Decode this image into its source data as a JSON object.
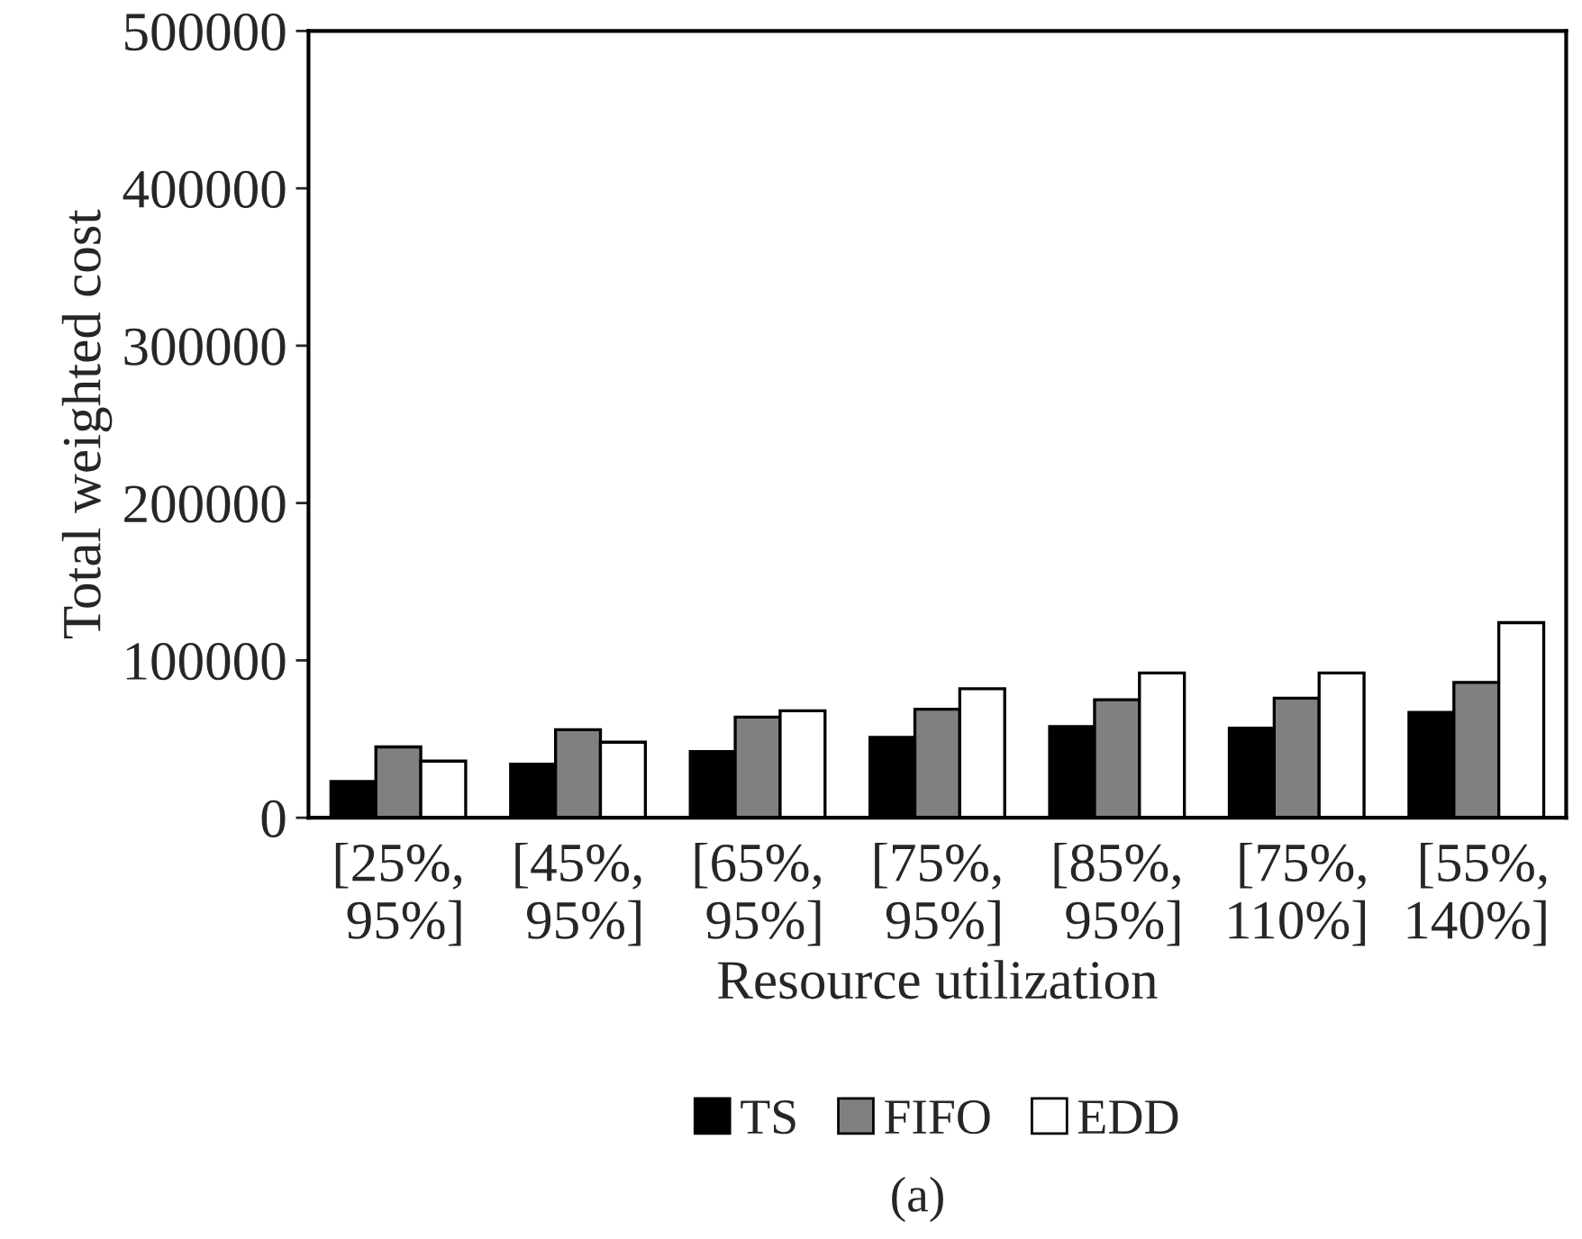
{
  "chart_data": {
    "type": "bar",
    "xlabel": "Resource utilization",
    "ylabel": "Total weighted cost",
    "categories": [
      "[25%,\n95%]",
      "[45%,\n95%]",
      "[65%,\n95%]",
      "[75%,\n95%]",
      "[85%,\n95%]",
      "[75%,\n110%]",
      "[55%,\n140%]"
    ],
    "series": [
      {
        "name": "TS",
        "color": "#000000",
        "values": [
          23000,
          34000,
          42000,
          51000,
          58000,
          57000,
          67000
        ]
      },
      {
        "name": "FIFO",
        "color": "#808080",
        "values": [
          45000,
          56000,
          64000,
          69000,
          75000,
          76000,
          86000
        ]
      },
      {
        "name": "EDD",
        "color": "#ffffff",
        "values": [
          36000,
          48000,
          68000,
          82000,
          92000,
          92000,
          124000
        ]
      }
    ],
    "ylim": [
      0,
      500000
    ],
    "yticks": [
      0,
      100000,
      200000,
      300000,
      400000,
      500000
    ],
    "grid": false,
    "legend": "bottom",
    "annotations": [
      "(a)"
    ]
  }
}
